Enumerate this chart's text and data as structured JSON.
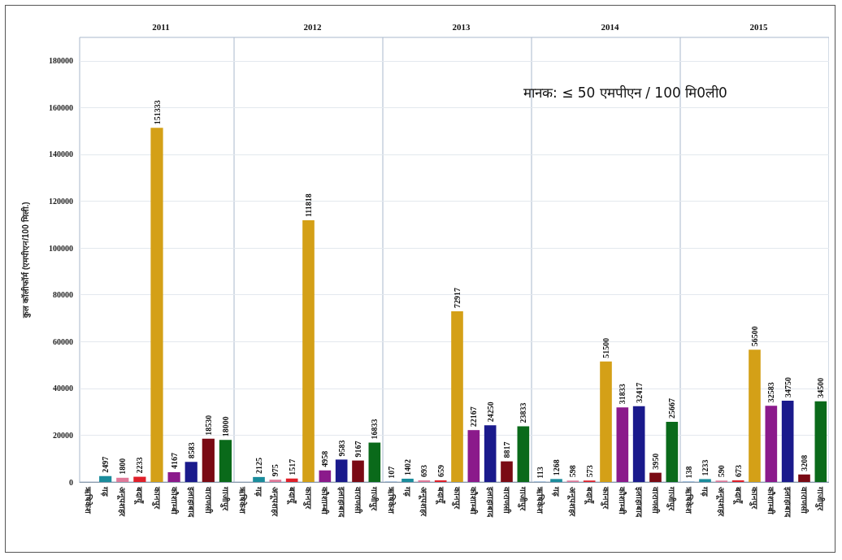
{
  "chart_data": [
    {
      "type": "bar",
      "title": "2011",
      "ylabel": "कुल कॉलीफॉर्म (एमपीएन/100 मिली.)",
      "categories": [
        "ऋषिकेश",
        "गढ़",
        "अनूपशहर",
        "बदायूँ",
        "कानपुर",
        "कौशाम्बी",
        "इलाहाबाद",
        "वाराणसी",
        "गाजीपुर"
      ],
      "values": [
        null,
        2497,
        1800,
        2233,
        151333,
        4167,
        8583,
        18530,
        18000
      ],
      "colors": [
        "#5b9bd5",
        "#1a8c9c",
        "#e07a9a",
        "#e0202a",
        "#d4a017",
        "#8b1a8b",
        "#1a1a8c",
        "#7a0a14",
        "#0a6a1a"
      ],
      "ylim": [
        0,
        190000
      ],
      "yticks": [
        0,
        20000,
        40000,
        60000,
        80000,
        100000,
        120000,
        140000,
        160000,
        180000
      ],
      "grid": "y",
      "data_labels": true
    },
    {
      "type": "bar",
      "title": "2012",
      "categories": [
        "ऋषिकेश",
        "गढ़",
        "अनूपशहर",
        "बदायूँ",
        "कानपुर",
        "कौशाम्बी",
        "इलाहाबाद",
        "वाराणसी",
        "गाजीपुर"
      ],
      "values": [
        null,
        2125,
        975,
        1517,
        111818,
        4958,
        9583,
        9167,
        16833
      ],
      "colors": [
        "#5b9bd5",
        "#1a8c9c",
        "#e07a9a",
        "#e0202a",
        "#d4a017",
        "#8b1a8b",
        "#1a1a8c",
        "#7a0a14",
        "#0a6a1a"
      ],
      "ylim": [
        0,
        190000
      ],
      "yticks": [
        0,
        20000,
        40000,
        60000,
        80000,
        100000,
        120000,
        140000,
        160000,
        180000
      ],
      "grid": "y",
      "data_labels": true,
      "tick_labels": "x"
    },
    {
      "type": "bar",
      "title": "2013",
      "categories": [
        "ऋषिकेश",
        "गढ़",
        "अनूपशहर",
        "बदायूँ",
        "कानपुर",
        "कौशाम्बी",
        "इलाहाबाद",
        "वाराणसी",
        "गाजीपुर"
      ],
      "values": [
        107,
        1402,
        693,
        659,
        72917,
        22167,
        24250,
        8817,
        23833
      ],
      "colors": [
        "#5b9bd5",
        "#1a8c9c",
        "#e07a9a",
        "#e0202a",
        "#d4a017",
        "#8b1a8b",
        "#1a1a8c",
        "#7a0a14",
        "#0a6a1a"
      ],
      "ylim": [
        0,
        190000
      ],
      "yticks": [
        0,
        20000,
        40000,
        60000,
        80000,
        100000,
        120000,
        140000,
        160000,
        180000
      ],
      "grid": "y",
      "data_labels": true,
      "tick_labels": "x"
    },
    {
      "type": "bar",
      "title": "2014",
      "annotations": [
        "मानक: ≤ 50 एमपीएन / 100 मि0ली0"
      ],
      "categories": [
        "ऋषिकेश",
        "गढ़",
        "अनूपशहर",
        "बदायूँ",
        "कानपुर",
        "कौशाम्बी",
        "इलाहाबाद",
        "वाराणसी",
        "गाजीपुर"
      ],
      "values": [
        113,
        1268,
        598,
        573,
        51500,
        31833,
        32417,
        3950,
        25667
      ],
      "colors": [
        "#5b9bd5",
        "#1a8c9c",
        "#e07a9a",
        "#e0202a",
        "#d4a017",
        "#8b1a8b",
        "#1a1a8c",
        "#7a0a14",
        "#0a6a1a"
      ],
      "ylim": [
        0,
        190000
      ],
      "yticks": [
        0,
        20000,
        40000,
        60000,
        80000,
        100000,
        120000,
        140000,
        160000,
        180000
      ],
      "grid": "y",
      "data_labels": true,
      "tick_labels": "x"
    },
    {
      "type": "bar",
      "title": "2015",
      "categories": [
        "ऋषिकेश",
        "गढ़",
        "अनूपशहर",
        "बदायूँ",
        "कानपुर",
        "कौशाम्बी",
        "इलाहाबाद",
        "वाराणसी",
        "गाजीपुर"
      ],
      "values": [
        138,
        1233,
        590,
        673,
        56500,
        32583,
        34750,
        3208,
        34500
      ],
      "colors": [
        "#5b9bd5",
        "#1a8c9c",
        "#e07a9a",
        "#e0202a",
        "#d4a017",
        "#8b1a8b",
        "#1a1a8c",
        "#7a0a14",
        "#0a6a1a"
      ],
      "ylim": [
        0,
        190000
      ],
      "yticks": [
        0,
        20000,
        40000,
        60000,
        80000,
        100000,
        120000,
        140000,
        160000,
        180000
      ],
      "grid": "y",
      "data_labels": true,
      "tick_labels": "x"
    }
  ]
}
